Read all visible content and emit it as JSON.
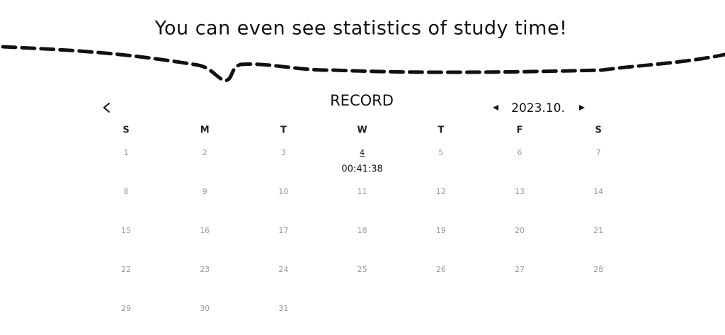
{
  "headline": "You can even see statistics of study time!",
  "header": {
    "title": "RECORD",
    "month": "2023.10."
  },
  "calendar": {
    "weekdays": [
      "S",
      "M",
      "T",
      "W",
      "T",
      "F",
      "S"
    ],
    "days": [
      {
        "day": 1
      },
      {
        "day": 2
      },
      {
        "day": 3
      },
      {
        "day": 4,
        "time": "00:41:38"
      },
      {
        "day": 5
      },
      {
        "day": 6
      },
      {
        "day": 7
      },
      {
        "day": 8
      },
      {
        "day": 9
      },
      {
        "day": 10
      },
      {
        "day": 11
      },
      {
        "day": 12
      },
      {
        "day": 13
      },
      {
        "day": 14
      },
      {
        "day": 15
      },
      {
        "day": 16
      },
      {
        "day": 17
      },
      {
        "day": 18
      },
      {
        "day": 19
      },
      {
        "day": 20
      },
      {
        "day": 21
      },
      {
        "day": 22
      },
      {
        "day": 23
      },
      {
        "day": 24
      },
      {
        "day": 25
      },
      {
        "day": 26
      },
      {
        "day": 27
      },
      {
        "day": 28
      },
      {
        "day": 29
      },
      {
        "day": 30
      },
      {
        "day": 31
      }
    ]
  }
}
